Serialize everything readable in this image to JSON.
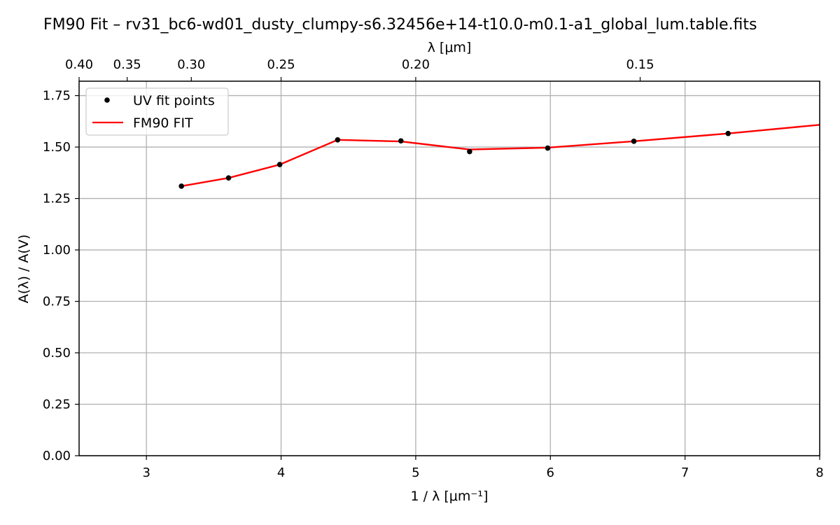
{
  "chart_data": {
    "type": "line",
    "title": "FM90 Fit – rv31_bc6-wd01_dusty_clumpy-s6.32456e+14-t10.0-m0.1-a1_global_lum.table.fits",
    "xlabel": "1 / λ [μm⁻¹]",
    "ylabel": "A(λ) / A(V)",
    "top_xlabel": "λ [μm]",
    "xlim": [
      2.5,
      8.0
    ],
    "ylim": [
      0.0,
      1.82
    ],
    "x_ticks": [
      3,
      4,
      5,
      6,
      7,
      8
    ],
    "x_tick_labels": [
      "3",
      "4",
      "5",
      "6",
      "7",
      "8"
    ],
    "y_ticks": [
      0.0,
      0.25,
      0.5,
      0.75,
      1.0,
      1.25,
      1.5,
      1.75
    ],
    "y_tick_labels": [
      "0.00",
      "0.25",
      "0.50",
      "0.75",
      "1.00",
      "1.25",
      "1.50",
      "1.75"
    ],
    "top_ticks_um": [
      0.4,
      0.35,
      0.3,
      0.25,
      0.2,
      0.15
    ],
    "top_tick_labels": [
      "0.40",
      "0.35",
      "0.30",
      "0.25",
      "0.20",
      "0.15"
    ],
    "grid": true,
    "legend_position": "top-left",
    "series": [
      {
        "name": "UV fit points",
        "kind": "scatter",
        "color": "#000000",
        "x": [
          3.26,
          3.61,
          3.99,
          4.42,
          4.89,
          5.4,
          5.98,
          6.62,
          7.32
        ],
        "y": [
          1.31,
          1.35,
          1.415,
          1.535,
          1.53,
          1.478,
          1.495,
          1.528,
          1.566
        ]
      },
      {
        "name": "FM90 FIT",
        "kind": "line",
        "color": "#ff0000",
        "x": [
          3.26,
          3.61,
          3.99,
          4.42,
          4.89,
          5.4,
          5.98,
          6.62,
          7.32,
          8.0
        ],
        "y": [
          1.31,
          1.35,
          1.415,
          1.535,
          1.527,
          1.488,
          1.497,
          1.528,
          1.566,
          1.608
        ]
      }
    ]
  }
}
